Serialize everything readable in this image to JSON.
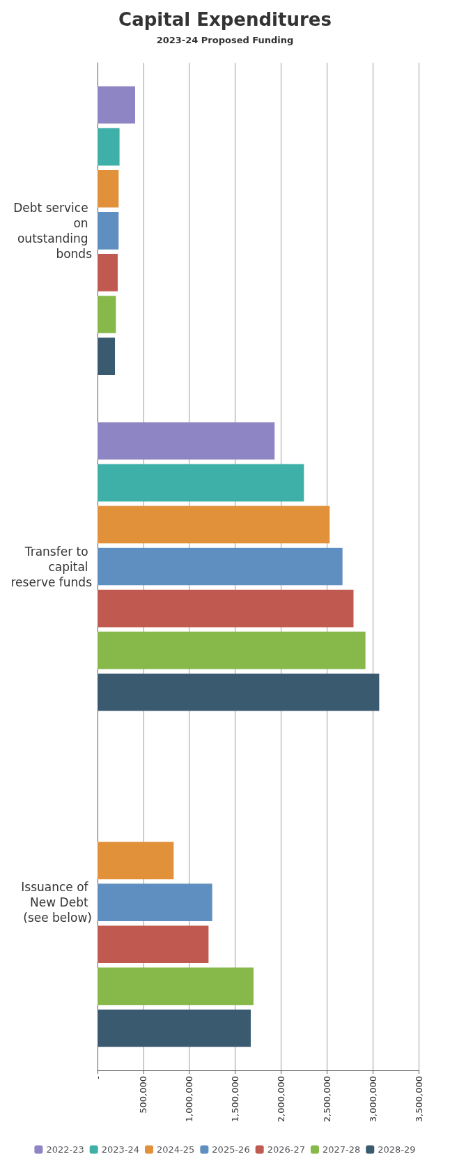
{
  "chart_data": {
    "type": "bar",
    "orientation": "horizontal",
    "title": "Capital Expenditures",
    "subtitle": "2023-24 Proposed Funding",
    "categories": [
      "Debt service on outstanding bonds",
      "Transfer to capital reserve funds",
      "Issuance of New Debt (see below)"
    ],
    "series": [
      {
        "name": "2022-23",
        "color": "#8e86c4",
        "values": [
          410000,
          1930000,
          null
        ]
      },
      {
        "name": "2023-24",
        "color": "#3fb0a8",
        "values": [
          240000,
          2250000,
          null
        ]
      },
      {
        "name": "2024-25",
        "color": "#e0913a",
        "values": [
          230000,
          2530000,
          830000
        ]
      },
      {
        "name": "2025-26",
        "color": "#5f8fc0",
        "values": [
          230000,
          2670000,
          1250000
        ]
      },
      {
        "name": "2026-27",
        "color": "#c05a50",
        "values": [
          220000,
          2790000,
          1210000
        ]
      },
      {
        "name": "2027-28",
        "color": "#86b84a",
        "values": [
          200000,
          2920000,
          1700000
        ]
      },
      {
        "name": "2028-29",
        "color": "#3a5a70",
        "values": [
          190000,
          3070000,
          1670000
        ]
      }
    ],
    "xlim": [
      0,
      3500000
    ],
    "xticks": [
      {
        "value": 0,
        "label": "-"
      },
      {
        "value": 500000,
        "label": "500,000"
      },
      {
        "value": 1000000,
        "label": "1,000,000"
      },
      {
        "value": 1500000,
        "label": "1,500,000"
      },
      {
        "value": 2000000,
        "label": "2,000,000"
      },
      {
        "value": 2500000,
        "label": "2,500,000"
      },
      {
        "value": 3000000,
        "label": "3,000,000"
      },
      {
        "value": 3500000,
        "label": "3,500,000"
      }
    ],
    "grid": "x",
    "legend": "bottom"
  }
}
